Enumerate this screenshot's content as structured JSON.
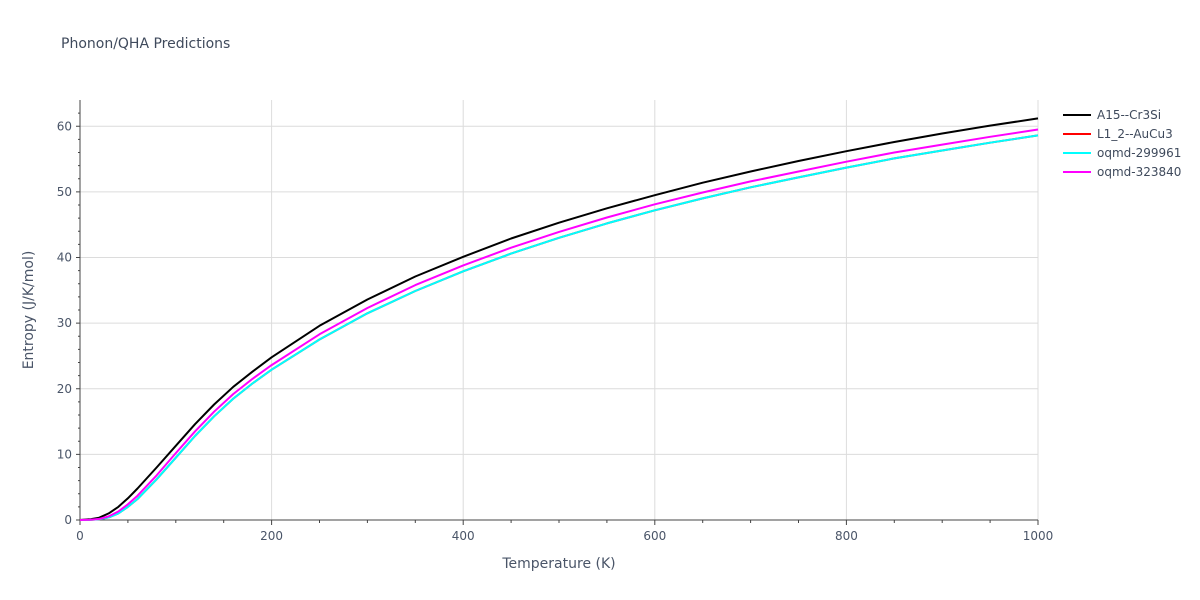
{
  "chart_data": {
    "type": "line",
    "title": "Phonon/QHA Predictions",
    "xlabel": "Temperature (K)",
    "ylabel": "Entropy (J/K/mol)",
    "xlim": [
      0,
      1000
    ],
    "ylim": [
      0,
      64
    ],
    "x_ticks": [
      0,
      200,
      400,
      600,
      800,
      1000
    ],
    "y_ticks": [
      0,
      10,
      20,
      30,
      40,
      50,
      60
    ],
    "grid": true,
    "legend_position": "top-right",
    "x": [
      0,
      10,
      20,
      30,
      40,
      50,
      60,
      80,
      100,
      120,
      140,
      160,
      180,
      200,
      250,
      300,
      350,
      400,
      450,
      500,
      550,
      600,
      650,
      700,
      750,
      800,
      850,
      900,
      950,
      1000
    ],
    "series": [
      {
        "name": "A15--Cr3Si",
        "color": "#000000",
        "values": [
          0,
          0.1,
          0.35,
          1.0,
          2.0,
          3.3,
          4.8,
          8.0,
          11.3,
          14.6,
          17.6,
          20.3,
          22.6,
          24.8,
          29.6,
          33.6,
          37.1,
          40.1,
          42.9,
          45.3,
          47.5,
          49.5,
          51.4,
          53.1,
          54.7,
          56.2,
          57.6,
          58.9,
          60.1,
          61.2
        ]
      },
      {
        "name": "L1_2--AuCu3",
        "color": "#ff0000",
        "values": [
          0,
          0.02,
          0.1,
          0.4,
          1.0,
          2.0,
          3.2,
          6.2,
          9.5,
          12.8,
          15.8,
          18.5,
          20.8,
          22.9,
          27.5,
          31.5,
          34.9,
          37.9,
          40.6,
          43.0,
          45.2,
          47.2,
          49.0,
          50.7,
          52.2,
          53.7,
          55.1,
          56.3,
          57.5,
          58.6
        ]
      },
      {
        "name": "oqmd-299961",
        "color": "#00ffff",
        "values": [
          0,
          0.02,
          0.1,
          0.4,
          1.0,
          2.0,
          3.2,
          6.2,
          9.5,
          12.8,
          15.8,
          18.5,
          20.8,
          22.9,
          27.5,
          31.5,
          34.9,
          37.9,
          40.6,
          43.0,
          45.2,
          47.2,
          49.0,
          50.7,
          52.2,
          53.7,
          55.1,
          56.3,
          57.5,
          58.6
        ]
      },
      {
        "name": "oqmd-323840",
        "color": "#ff00ff",
        "values": [
          0,
          0.03,
          0.15,
          0.55,
          1.3,
          2.4,
          3.7,
          6.8,
          10.2,
          13.5,
          16.5,
          19.2,
          21.5,
          23.6,
          28.3,
          32.3,
          35.8,
          38.8,
          41.5,
          43.9,
          46.1,
          48.1,
          49.9,
          51.6,
          53.1,
          54.6,
          56.0,
          57.2,
          58.4,
          59.5
        ]
      }
    ]
  }
}
